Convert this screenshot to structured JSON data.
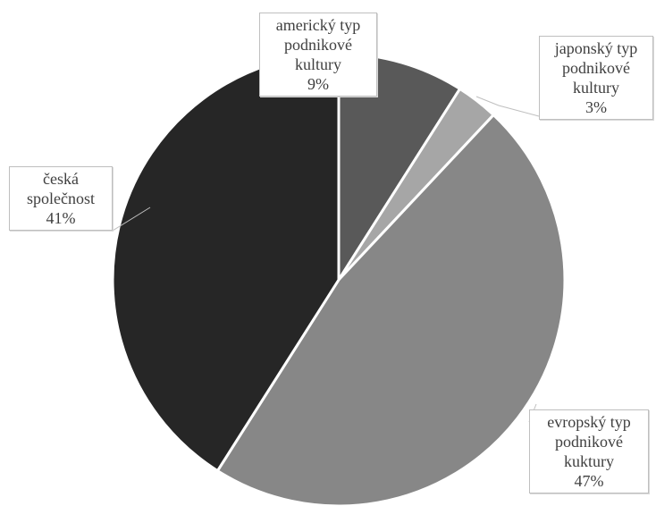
{
  "chart_data": {
    "type": "pie",
    "title": "",
    "start_angle_deg": 0,
    "direction": "clockwise",
    "slices": [
      {
        "label": "americký typ podnikové kultury",
        "label_lines": [
          "americký typ",
          "podnikové",
          "kultury"
        ],
        "value": 9,
        "value_text": "9%",
        "color": "#595959"
      },
      {
        "label": "japonský typ podnikové kultury",
        "label_lines": [
          "japonský typ",
          "podnikové",
          "kultury"
        ],
        "value": 3,
        "value_text": "3%",
        "color": "#a6a6a6"
      },
      {
        "label": "evropský typ podnikové kuktury",
        "label_lines": [
          "evropský typ",
          "podnikové",
          "kuktury"
        ],
        "value": 47,
        "value_text": "47%",
        "color": "#878787"
      },
      {
        "label": "česká společnost",
        "label_lines": [
          "česká",
          "společnost"
        ],
        "value": 41,
        "value_text": "41%",
        "color": "#262626"
      }
    ]
  }
}
